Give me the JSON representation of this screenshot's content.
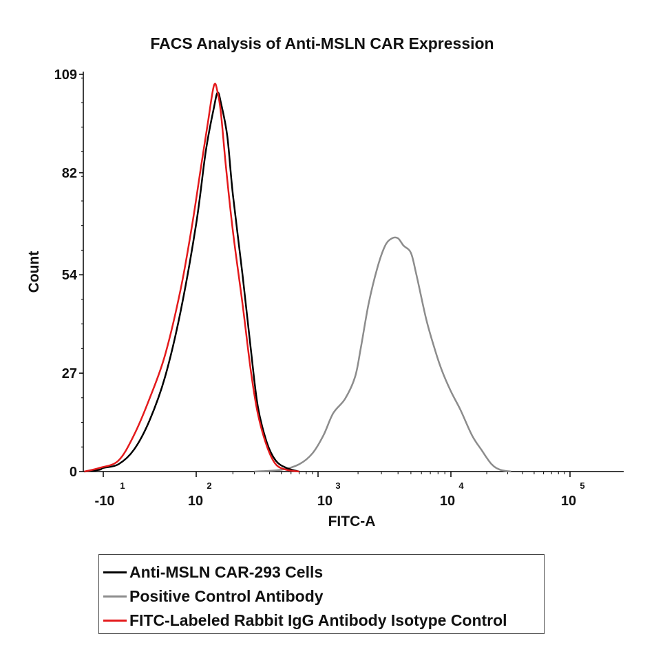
{
  "chart_data": {
    "type": "line",
    "title": "FACS Analysis of Anti-MSLN CAR Expression",
    "xlabel": "FITC-A",
    "ylabel": "Count",
    "ylim": [
      0,
      109
    ],
    "yticks": [
      "0",
      "27",
      "54",
      "82",
      "109"
    ],
    "xticks": [
      {
        "base": "-10",
        "exp": "1"
      },
      {
        "base": "10",
        "exp": "2"
      },
      {
        "base": "10",
        "exp": "3"
      },
      {
        "base": "10",
        "exp": "4"
      },
      {
        "base": "10",
        "exp": "5"
      }
    ],
    "x_scale": "logicle",
    "series": [
      {
        "name": "Anti-MSLN CAR-293 Cells",
        "color": "#000000",
        "points": [
          [
            -60,
            0
          ],
          [
            -20,
            0.5
          ],
          [
            -10,
            1
          ],
          [
            0,
            2
          ],
          [
            20,
            6
          ],
          [
            40,
            14
          ],
          [
            60,
            26
          ],
          [
            80,
            44
          ],
          [
            100,
            68
          ],
          [
            120,
            88
          ],
          [
            140,
            100
          ],
          [
            150,
            104
          ],
          [
            160,
            101
          ],
          [
            180,
            92
          ],
          [
            200,
            76
          ],
          [
            240,
            54
          ],
          [
            280,
            34
          ],
          [
            320,
            18
          ],
          [
            380,
            8
          ],
          [
            450,
            3
          ],
          [
            550,
            1
          ],
          [
            700,
            0
          ]
        ]
      },
      {
        "name": "Positive Control Antibody",
        "color": "#8c8c8c",
        "points": [
          [
            300,
            0
          ],
          [
            500,
            0.5
          ],
          [
            700,
            2
          ],
          [
            900,
            5
          ],
          [
            1100,
            10
          ],
          [
            1300,
            16
          ],
          [
            1600,
            20
          ],
          [
            1900,
            26
          ],
          [
            2100,
            34
          ],
          [
            2400,
            46
          ],
          [
            2800,
            56
          ],
          [
            3200,
            62
          ],
          [
            3600,
            64
          ],
          [
            4000,
            64
          ],
          [
            4400,
            62
          ],
          [
            5000,
            60
          ],
          [
            5500,
            54
          ],
          [
            6500,
            42
          ],
          [
            7500,
            34
          ],
          [
            8500,
            28
          ],
          [
            10000,
            22
          ],
          [
            12000,
            17
          ],
          [
            15000,
            10
          ],
          [
            18000,
            6
          ],
          [
            22000,
            2
          ],
          [
            26000,
            0.5
          ],
          [
            32000,
            0
          ]
        ]
      },
      {
        "name": "FITC-Labeled Rabbit IgG Antibody Isotype Control",
        "color": "#e41a1c",
        "points": [
          [
            -60,
            0
          ],
          [
            -20,
            1
          ],
          [
            0,
            3
          ],
          [
            20,
            10
          ],
          [
            40,
            20
          ],
          [
            60,
            32
          ],
          [
            80,
            50
          ],
          [
            95,
            68
          ],
          [
            110,
            84
          ],
          [
            125,
            96
          ],
          [
            140,
            106
          ],
          [
            150,
            104
          ],
          [
            160,
            98
          ],
          [
            175,
            84
          ],
          [
            200,
            66
          ],
          [
            240,
            46
          ],
          [
            280,
            28
          ],
          [
            320,
            16
          ],
          [
            380,
            7
          ],
          [
            450,
            2
          ],
          [
            550,
            0.5
          ],
          [
            700,
            0
          ]
        ]
      }
    ]
  }
}
